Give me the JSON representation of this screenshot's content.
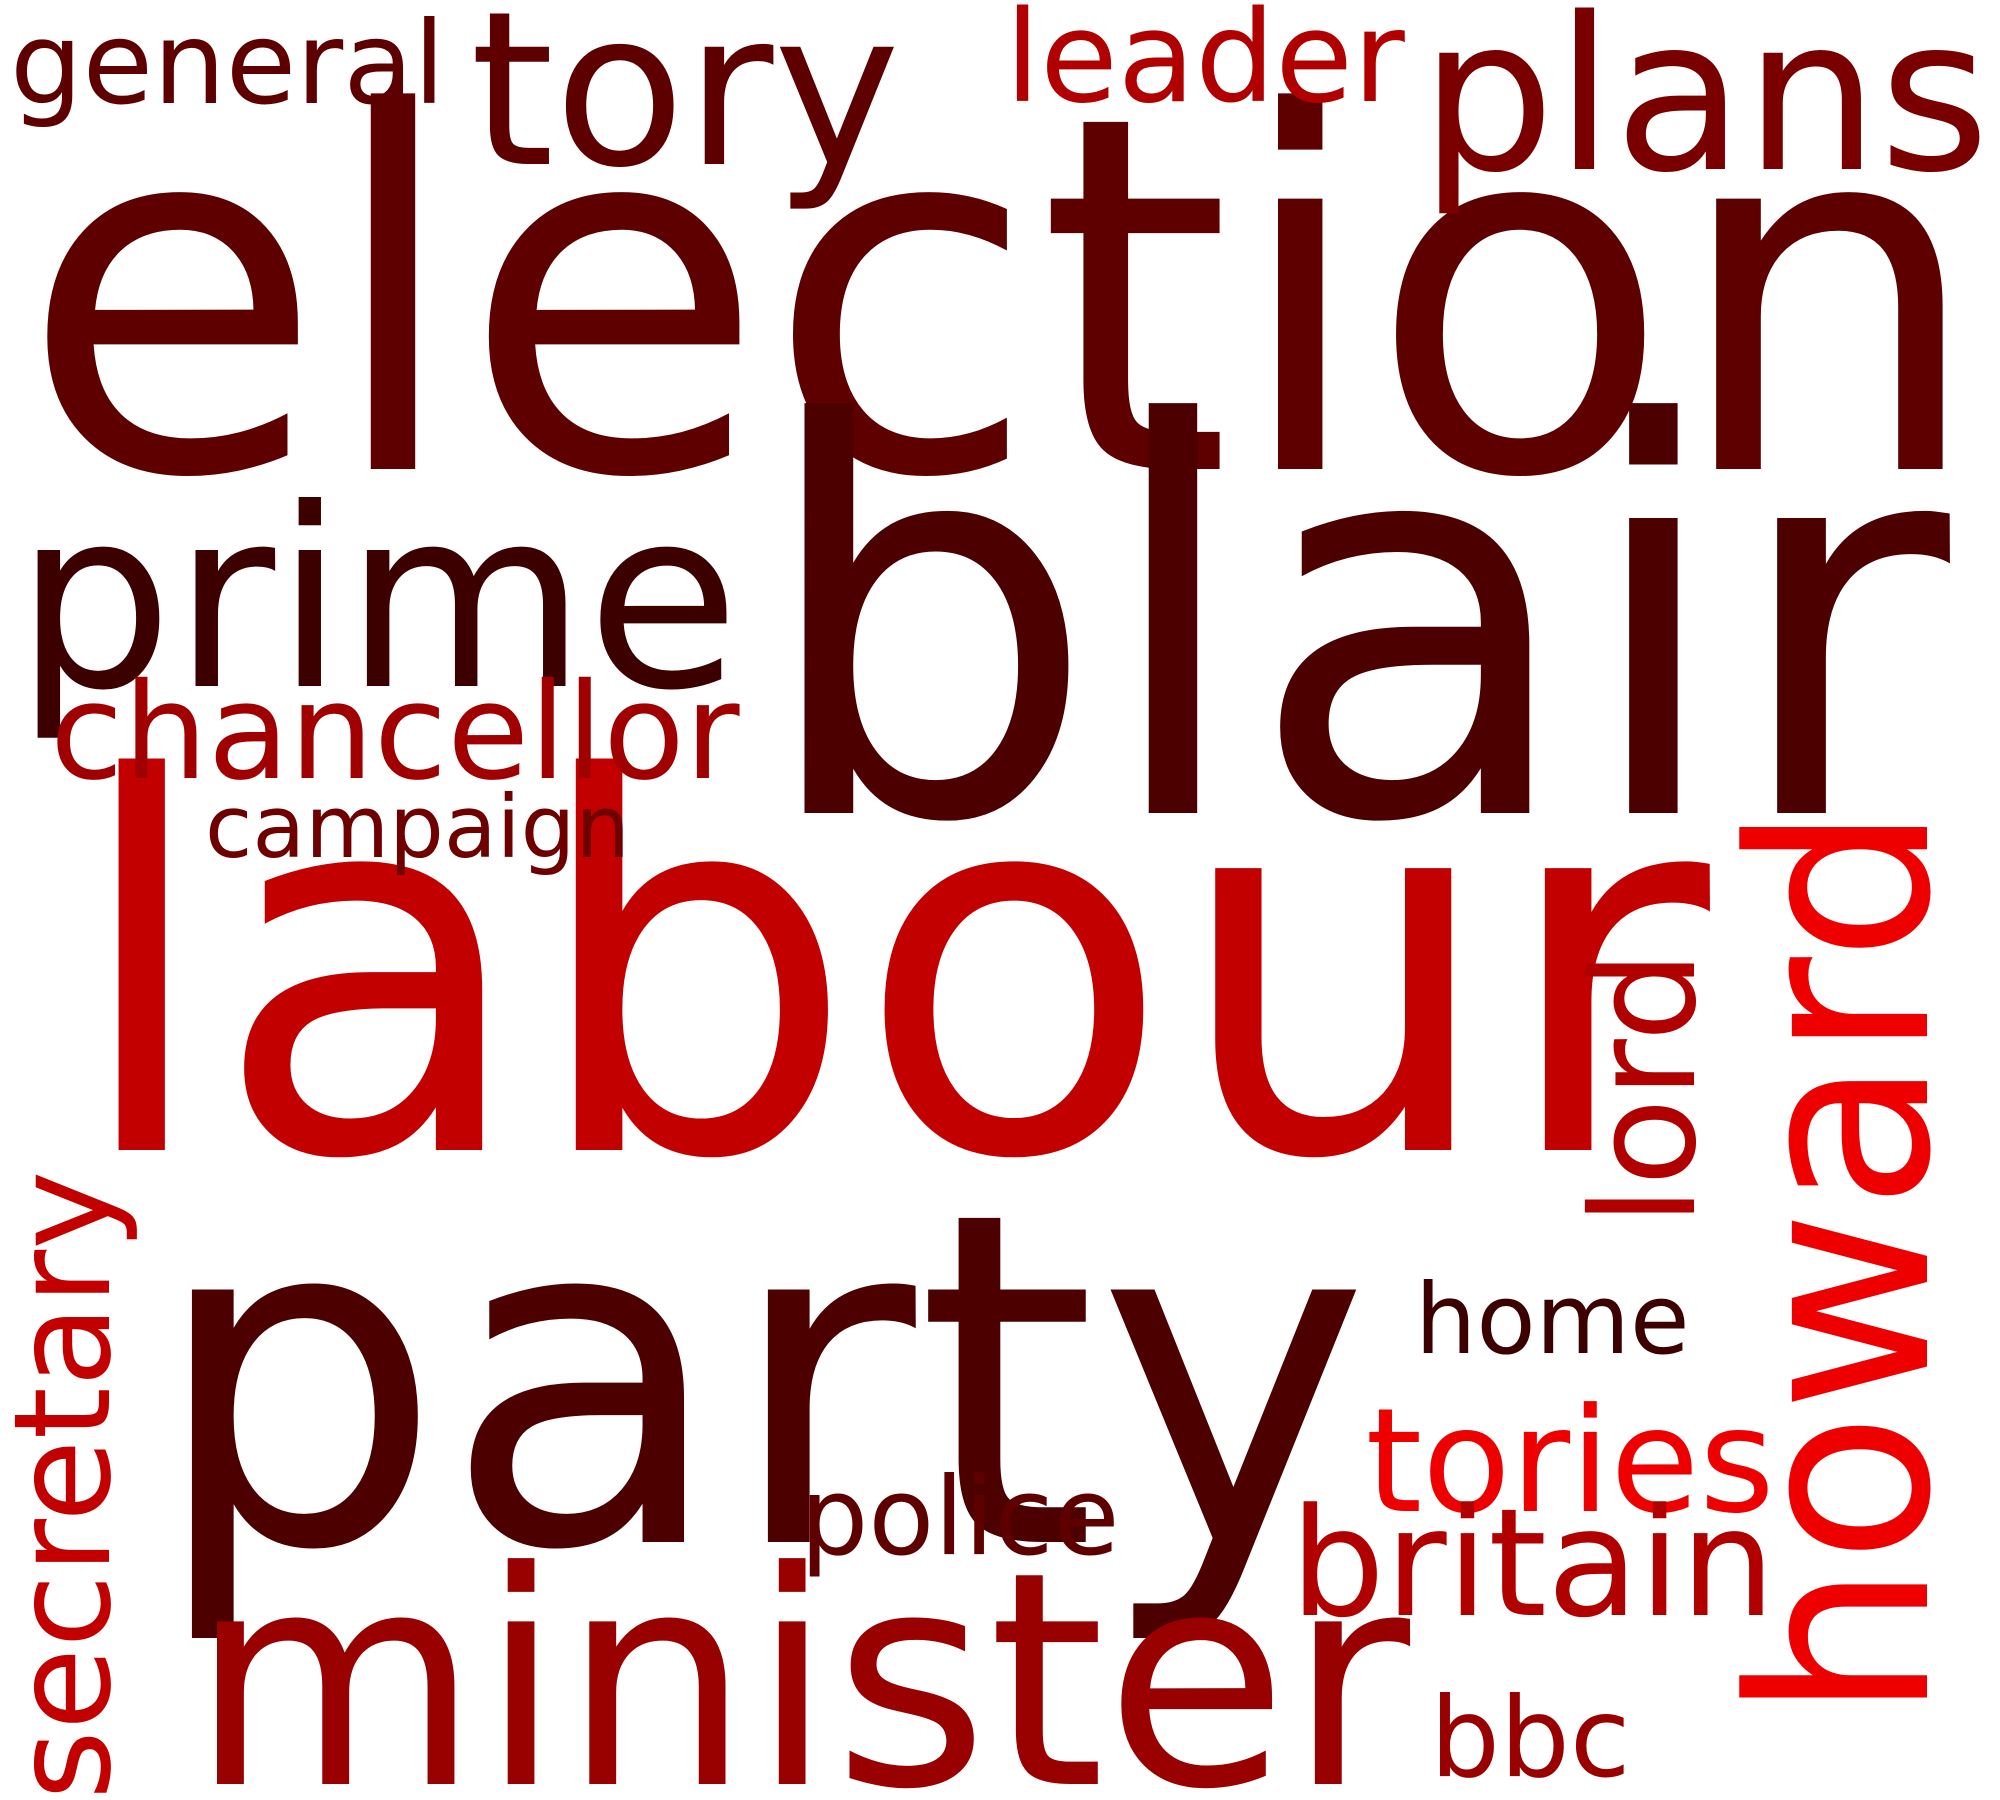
{
  "words": [
    {
      "text": "election",
      "color": "#5e0000",
      "orientation": "horizontal"
    },
    {
      "text": "blair",
      "color": "#4d0000",
      "orientation": "horizontal"
    },
    {
      "text": "labour",
      "color": "#c20000",
      "orientation": "horizontal"
    },
    {
      "text": "party",
      "color": "#4d0000",
      "orientation": "horizontal"
    },
    {
      "text": "minister",
      "color": "#990000",
      "orientation": "horizontal"
    },
    {
      "text": "howard",
      "color": "#ee0000",
      "orientation": "vertical"
    },
    {
      "text": "prime",
      "color": "#3d0000",
      "orientation": "horizontal"
    },
    {
      "text": "tory",
      "color": "#5e0000",
      "orientation": "horizontal"
    },
    {
      "text": "plans",
      "color": "#7a0000",
      "orientation": "horizontal"
    },
    {
      "text": "secretary",
      "color": "#c20000",
      "orientation": "vertical"
    },
    {
      "text": "chancellor",
      "color": "#a00000",
      "orientation": "horizontal"
    },
    {
      "text": "tories",
      "color": "#ee0000",
      "orientation": "horizontal"
    },
    {
      "text": "britain",
      "color": "#b00000",
      "orientation": "horizontal"
    },
    {
      "text": "leader",
      "color": "#b00000",
      "orientation": "horizontal"
    },
    {
      "text": "general",
      "color": "#5e0000",
      "orientation": "horizontal"
    },
    {
      "text": "home",
      "color": "#3d0000",
      "orientation": "horizontal"
    },
    {
      "text": "lord",
      "color": "#b00000",
      "orientation": "vertical"
    },
    {
      "text": "bbc",
      "color": "#990000",
      "orientation": "horizontal"
    },
    {
      "text": "campaign",
      "color": "#6e0000",
      "orientation": "horizontal"
    },
    {
      "text": "police",
      "color": "#5e0000",
      "orientation": "horizontal"
    }
  ]
}
